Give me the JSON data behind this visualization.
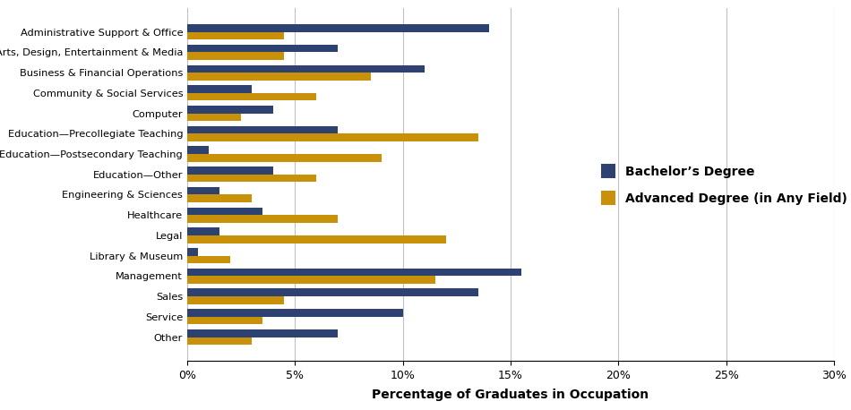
{
  "categories": [
    "Administrative Support & Office",
    "Arts, Design, Entertainment & Media",
    "Business & Financial Operations",
    "Community & Social Services",
    "Computer",
    "Education—Precollegiate Teaching",
    "Education—Postsecondary Teaching",
    "Education—Other",
    "Engineering & Sciences",
    "Healthcare",
    "Legal",
    "Library & Museum",
    "Management",
    "Sales",
    "Service",
    "Other"
  ],
  "bachelors": [
    14.0,
    7.0,
    11.0,
    3.0,
    4.0,
    7.0,
    1.0,
    4.0,
    1.5,
    3.5,
    1.5,
    0.5,
    15.5,
    13.5,
    10.0,
    7.0
  ],
  "advanced": [
    4.5,
    4.5,
    8.5,
    6.0,
    2.5,
    13.5,
    9.0,
    6.0,
    3.0,
    7.0,
    12.0,
    2.0,
    11.5,
    4.5,
    3.5,
    3.0
  ],
  "bachelors_color": "#2e4272",
  "advanced_color": "#c9910a",
  "xlabel": "Percentage of Graduates in Occupation",
  "legend_bachelors": "Bachelor’s Degree",
  "legend_advanced": "Advanced Degree (in Any Field)",
  "xlim": [
    0,
    30
  ],
  "xticks": [
    0,
    5,
    10,
    15,
    20,
    25,
    30
  ],
  "xtick_labels": [
    "0%",
    "5%",
    "10%",
    "15%",
    "20%",
    "25%",
    "30%"
  ],
  "background_color": "#ffffff",
  "bar_height": 0.38,
  "ytick_fontsize": 8.2,
  "xtick_fontsize": 9.0,
  "xlabel_fontsize": 10,
  "legend_fontsize": 10
}
